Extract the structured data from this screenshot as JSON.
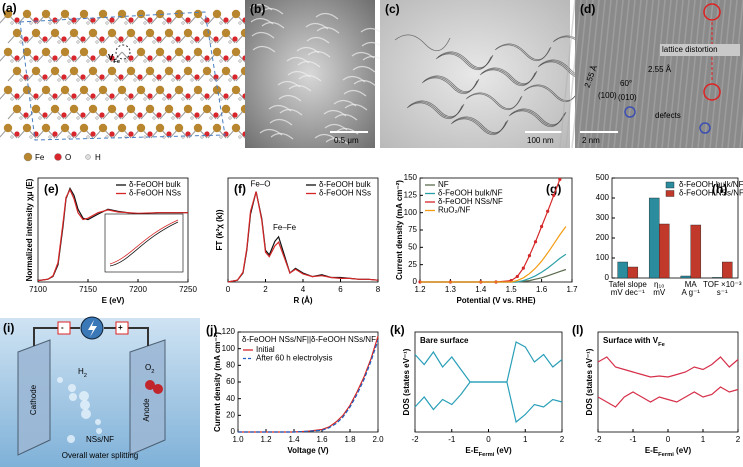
{
  "images": [
    {
      "label": "(a)",
      "vacancy": [
        "V",
        "Fe"
      ],
      "legend": [
        "Fe",
        "O",
        "H"
      ]
    },
    {
      "label": "(b)",
      "scale": "0.5 μm"
    },
    {
      "label": "(c)",
      "scale": "100 nm"
    },
    {
      "label": "(d)",
      "scale": "2 nm",
      "notes": [
        "lattice distortion",
        "defects",
        "2.55 Å",
        "2.55 Å",
        "60°",
        "(100)",
        "(010)"
      ]
    },
    {
      "label": "(i)",
      "texts": [
        "Cathode",
        "Anode",
        "NSs/NF",
        "Overall water splitting",
        "-",
        "+"
      ],
      "h2": [
        "H",
        "2"
      ],
      "o2": [
        "O",
        "2"
      ]
    }
  ],
  "chart_data": [
    {
      "type": "line",
      "panel_label": "(e)",
      "x_label": "E (eV)",
      "y_label": "Normalized intensity χμ (E)",
      "xlim": [
        7100,
        7250
      ],
      "xticks": [
        7100,
        7150,
        7200,
        7250
      ],
      "ylim": [
        0,
        1.5
      ],
      "legend": "upper right",
      "x": [
        7100,
        7110,
        7115,
        7120,
        7125,
        7128,
        7132,
        7136,
        7140,
        7145,
        7150,
        7160,
        7170,
        7180,
        7200,
        7220,
        7250
      ],
      "series": [
        {
          "name": "δ-FeOOH bulk",
          "color": "#111111",
          "values": [
            0.02,
            0.04,
            0.08,
            0.25,
            0.8,
            1.2,
            1.35,
            1.25,
            1.05,
            0.92,
            0.9,
            0.98,
            1.05,
            1.02,
            0.98,
            1.0,
            1.0
          ]
        },
        {
          "name": "δ-FeOOH NSs",
          "color": "#d62728",
          "values": [
            0.02,
            0.04,
            0.09,
            0.28,
            0.85,
            1.22,
            1.33,
            1.2,
            1.0,
            0.9,
            0.92,
            1.0,
            1.04,
            1.01,
            0.99,
            1.0,
            1.0
          ]
        }
      ]
    },
    {
      "type": "line",
      "panel_label": "(f)",
      "x_label": "R (Å)",
      "y_label": "FT (k²χ (k))",
      "xlim": [
        0,
        8
      ],
      "xticks": [
        0,
        2,
        4,
        6,
        8
      ],
      "ylim": [
        0,
        1.15
      ],
      "legend": "upper right",
      "annotations": [
        "Fe–O",
        "Fe–Fe"
      ],
      "x": [
        0,
        0.5,
        0.8,
        1.0,
        1.2,
        1.5,
        1.8,
        2.0,
        2.2,
        2.5,
        2.7,
        3.0,
        3.3,
        3.6,
        4,
        4.5,
        5,
        5.5,
        6,
        6.5,
        7,
        7.5,
        8
      ],
      "series": [
        {
          "name": "δ-FeOOH bulk",
          "color": "#111111",
          "values": [
            0,
            0.02,
            0.1,
            0.35,
            0.75,
            1.0,
            0.7,
            0.35,
            0.3,
            0.45,
            0.5,
            0.3,
            0.1,
            0.15,
            0.1,
            0.06,
            0.08,
            0.05,
            0.05,
            0.04,
            0.03,
            0.03,
            0.02
          ]
        },
        {
          "name": "δ-FeOOH NSs",
          "color": "#d62728",
          "values": [
            0,
            0.02,
            0.11,
            0.37,
            0.78,
            1.0,
            0.68,
            0.33,
            0.28,
            0.4,
            0.44,
            0.27,
            0.1,
            0.14,
            0.09,
            0.06,
            0.07,
            0.05,
            0.04,
            0.04,
            0.03,
            0.03,
            0.02
          ]
        }
      ]
    },
    {
      "type": "line",
      "panel_label": "(g)",
      "x_label": "Potential (V vs. RHE)",
      "y_label": "Current density (mA cm⁻²)",
      "xlim": [
        1.2,
        1.7
      ],
      "xticks": [
        1.2,
        1.3,
        1.4,
        1.5,
        1.6,
        1.7
      ],
      "ylim": [
        0,
        150
      ],
      "yticks": [
        0,
        25,
        50,
        75,
        100,
        125,
        150
      ],
      "legend": "upper left",
      "x": [
        1.2,
        1.3,
        1.4,
        1.45,
        1.5,
        1.52,
        1.54,
        1.56,
        1.58,
        1.6,
        1.62,
        1.64,
        1.66,
        1.68
      ],
      "series": [
        {
          "name": "NF",
          "color": "#5b6b4e",
          "values": [
            0,
            0,
            0,
            0,
            0,
            0,
            1,
            2,
            4,
            6,
            9,
            12,
            15,
            18
          ]
        },
        {
          "name": "δ-FeOOH bulk/NF",
          "color": "#2a9fa8",
          "values": [
            0,
            0,
            0,
            0,
            0,
            0,
            2,
            5,
            9,
            14,
            20,
            27,
            34,
            40
          ]
        },
        {
          "name": "δ-FeOOH NSs/NF",
          "color": "#d62728",
          "markers": true,
          "values": [
            0,
            0,
            0,
            0,
            2,
            8,
            20,
            38,
            58,
            80,
            102,
            125,
            148,
            null
          ]
        },
        {
          "name": "RuO₂/NF",
          "color": "#f39c12",
          "values": [
            0,
            0,
            0,
            0,
            0,
            2,
            6,
            12,
            20,
            30,
            42,
            55,
            68,
            80
          ]
        }
      ]
    },
    {
      "type": "bar",
      "panel_label": "(h)",
      "ylim": [
        0,
        500
      ],
      "yticks": [
        0,
        100,
        200,
        300,
        400,
        500
      ],
      "legend": "upper right",
      "categories": [
        [
          "Tafel slope",
          "mV dec⁻¹"
        ],
        [
          "η₁₀",
          "mV"
        ],
        [
          "MA",
          "A g⁻¹"
        ],
        [
          "TOF ×10⁻³",
          "s⁻¹"
        ]
      ],
      "series": [
        {
          "name": "δ-FeOOH bulk/NF",
          "color": "#2b8c9e",
          "values": [
            80,
            400,
            10,
            3
          ]
        },
        {
          "name": "δ-FeOOH NSs/NF",
          "color": "#c0392b",
          "values": [
            55,
            270,
            265,
            80
          ]
        }
      ]
    },
    {
      "type": "line",
      "panel_label": "(j)",
      "subtitle": "δ-FeOOH NSs/NF||δ-FeOOH NSs/NF",
      "x_label": "Voltage (V)",
      "y_label": "Current density (mA cm⁻²)",
      "xlim": [
        1.0,
        2.0
      ],
      "xticks": [
        {
          "value": 1.0,
          "label": "1.0"
        },
        1.2,
        1.4,
        1.6,
        1.8,
        {
          "value": 2.0,
          "label": "2.0"
        }
      ],
      "ylim": [
        0,
        120
      ],
      "yticks": [
        0,
        20,
        40,
        60,
        80,
        100,
        120
      ],
      "legend": "upper left",
      "x": [
        1.0,
        1.2,
        1.4,
        1.5,
        1.6,
        1.65,
        1.7,
        1.75,
        1.8,
        1.85,
        1.9,
        1.95,
        2.0
      ],
      "series": [
        {
          "name": "Initial",
          "color": "#d62728",
          "values": [
            0,
            0,
            0,
            1,
            3,
            6,
            12,
            20,
            32,
            48,
            66,
            88,
            115
          ]
        },
        {
          "name": "After 60 h electrolysis",
          "color": "#1f5fbf",
          "style": "dashed",
          "values": [
            0,
            0,
            0,
            1,
            2,
            5,
            10,
            18,
            30,
            45,
            63,
            85,
            110
          ]
        }
      ]
    },
    {
      "type": "line",
      "panel_label": "(k)",
      "title": "Bare surface",
      "x_label": [
        "E-E",
        "Fermi",
        " (eV)"
      ],
      "y_label": "DOS (states eV⁻¹)",
      "xlim": [
        -2,
        2
      ],
      "xticks": [
        -2,
        -1,
        0,
        1,
        2
      ],
      "ylim": [
        -1,
        1
      ],
      "x": [
        -2,
        -1.75,
        -1.5,
        -1.25,
        -1,
        -0.75,
        -0.5,
        -0.25,
        0,
        0.25,
        0.5,
        0.75,
        1,
        1.25,
        1.5,
        1.75,
        2
      ],
      "series": [
        {
          "color": "#2a9fb8",
          "values": [
            0.55,
            0.35,
            0.6,
            0.3,
            0.5,
            0.25,
            0,
            0,
            0,
            0,
            0,
            0.8,
            0.7,
            0.4,
            0.55,
            0.3,
            0.45
          ]
        },
        {
          "color": "#2a9fb8",
          "values": [
            -0.5,
            -0.3,
            -0.55,
            -0.35,
            -0.45,
            -0.25,
            0,
            0,
            0,
            0,
            0,
            -0.8,
            -0.65,
            -0.45,
            -0.5,
            -0.35,
            -0.4
          ]
        }
      ]
    },
    {
      "type": "line",
      "panel_label": "(l)",
      "title": [
        "Surface with V",
        "Fe"
      ],
      "x_label": [
        "E-E",
        "Fermi",
        " (eV)"
      ],
      "y_label": "DOS (states eV⁻¹)",
      "xlim": [
        -2,
        2
      ],
      "xticks": [
        -2,
        -1,
        0,
        1,
        2
      ],
      "ylim": [
        -1,
        1
      ],
      "x": [
        -2,
        -1.75,
        -1.5,
        -1.25,
        -1,
        -0.75,
        -0.5,
        -0.25,
        0,
        0.25,
        0.5,
        0.75,
        1,
        1.25,
        1.5,
        1.75,
        2
      ],
      "series": [
        {
          "color": "#d62f4a",
          "values": [
            0.4,
            0.5,
            0.3,
            0.25,
            0.2,
            0.15,
            0.1,
            0.12,
            0.1,
            0.15,
            0.2,
            0.3,
            0.25,
            0.35,
            0.5,
            0.3,
            0.45
          ]
        },
        {
          "color": "#d62f4a",
          "values": [
            -0.3,
            -0.4,
            -0.5,
            -0.3,
            -0.2,
            -0.3,
            -0.4,
            -0.3,
            -0.35,
            -0.4,
            -0.3,
            -0.2,
            -0.3,
            -0.25,
            -0.1,
            -0.2,
            -0.15
          ]
        }
      ]
    }
  ]
}
